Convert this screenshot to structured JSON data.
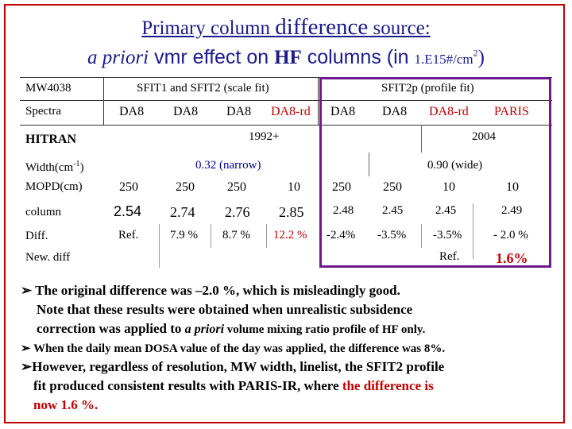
{
  "title": {
    "line1_prefix": "Primary column ",
    "line1_emph": "difference",
    "line1_suffix": " source:",
    "line2_italic": "a priori",
    "line2_vmr": " vmr",
    "line2_mid": " effect on ",
    "line2_hf": "HF",
    "line2_cols": " columns (in ",
    "line2_unit": "1.E15#/cm",
    "line2_sup": "2",
    "line2_close": ")"
  },
  "table": {
    "mw": "MW4038",
    "sfit_header": "SFIT1 and SFIT2 (scale fit)",
    "sfit2p_header": "SFIT2p (profile fit)",
    "spectra_label": "Spectra",
    "spectra": [
      "DA8",
      "DA8",
      "DA8",
      "DA8-rd",
      "DA8",
      "DA8",
      "DA8-rd",
      "PARIS"
    ],
    "hitran_label": "HITRAN",
    "hitran_1992": "1992+",
    "hitran_2004": "2004",
    "width_label": "Width(cm",
    "width_sup": "-1",
    "width_close": ")",
    "width_narrow": "0.32 (narrow)",
    "width_wide": "0.90 (wide)",
    "mopd_label": "MOPD(cm)",
    "mopd": [
      "250",
      "250",
      "250",
      "10",
      "250",
      "250",
      "10",
      "10"
    ],
    "column_label": "column",
    "column": [
      "2.54",
      "2.74",
      "2.76",
      "2.85",
      "2.48",
      "2.45",
      "2.45",
      "2.49"
    ],
    "diff_label": "Diff.",
    "diff": [
      "Ref.",
      "7.9 %",
      "8.7 %",
      "12.2 %",
      "-2.4%",
      "-3.5%",
      "-3.5%",
      "- 2.0 %"
    ],
    "newdiff_label": "New. diff",
    "newdiff_ref": "Ref.",
    "newdiff_val": "1.6%"
  },
  "bullets": {
    "b1_line1": "The original difference was –2.0 %, which is misleadingly good.",
    "b1_line2": "Note that these results were obtained when unrealistic subsidence",
    "b1_line3_pre": "correction was applied to ",
    "b1_line3_italic": "a priori",
    "b1_line3_post": " volume mixing ratio profile of HF only.",
    "b2": "When the daily mean DOSA value of the day was applied, the difference was 8%.",
    "b3_line1": "However, regardless of resolution, MW width, linelist, the SFIT2 profile",
    "b3_line2_pre": "fit produced consistent results with PARIS-IR, where ",
    "b3_line2_red": "the difference is",
    "b3_line3_red": "now 1.6 %."
  },
  "colors": {
    "title": "#1a1a8c",
    "accent_red": "#c00000",
    "box_purple": "#6a1a8a",
    "frame_red": "#c00000"
  },
  "icons": {
    "bullet": "arrow-bullet-icon"
  }
}
